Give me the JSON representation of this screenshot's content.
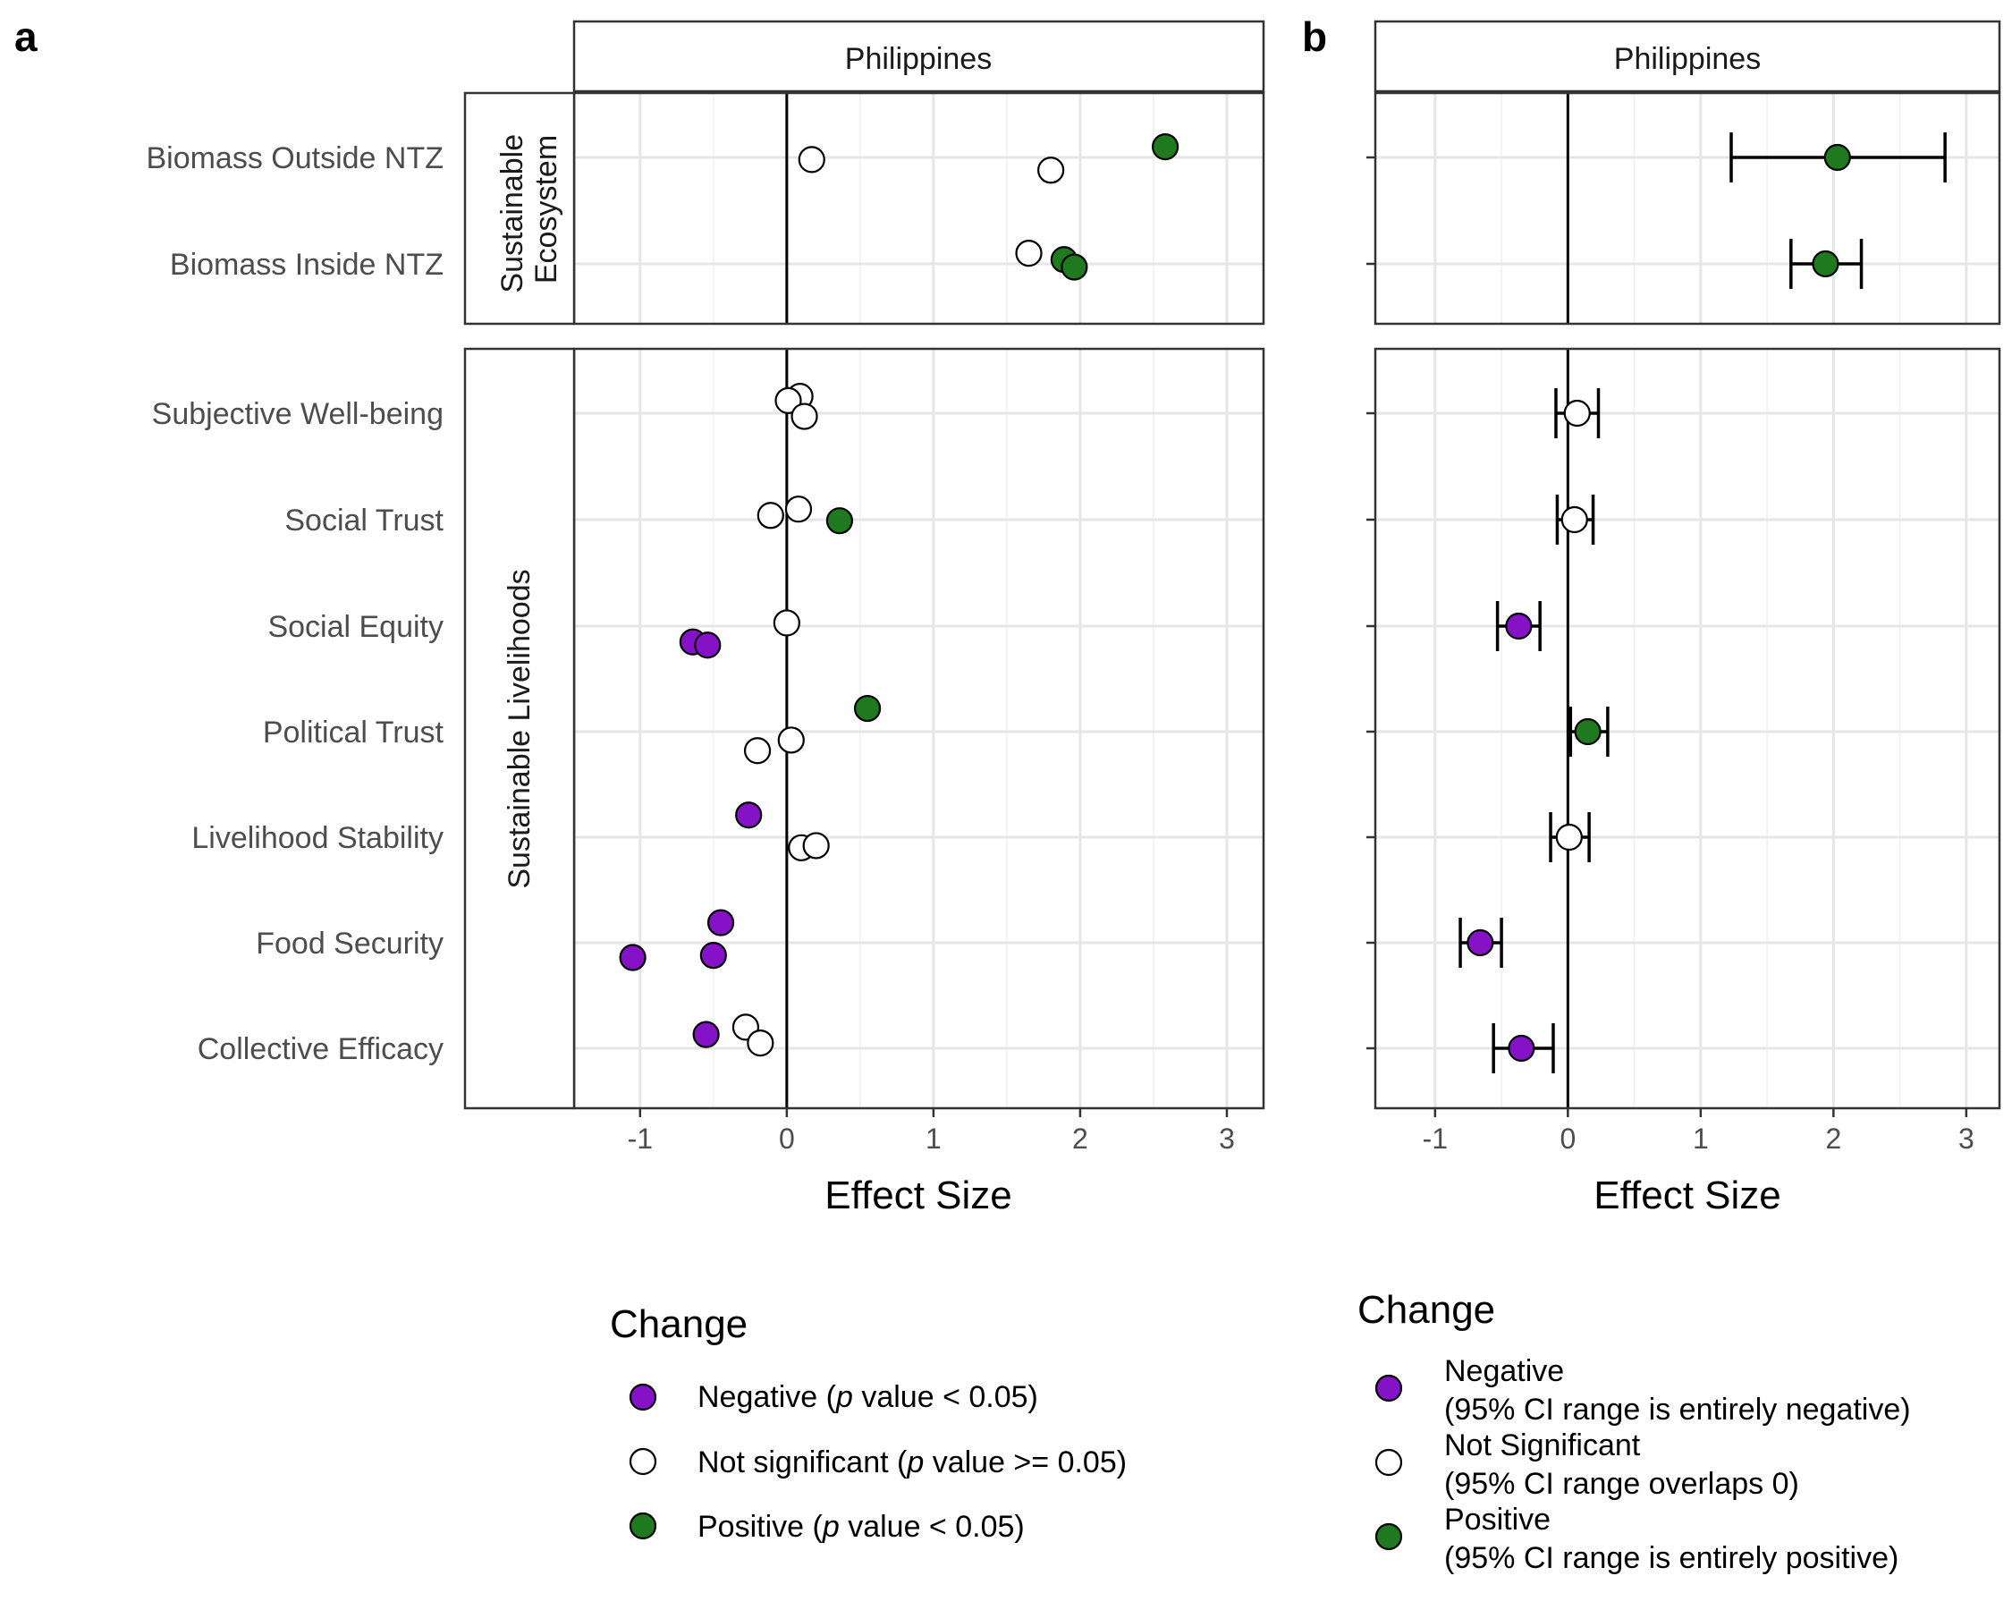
{
  "panels": {
    "a_label": "a",
    "b_label": "b",
    "strip_title": "Philippines",
    "x_title": "Effect Size",
    "facet_top": [
      "Sustainable",
      "Ecosystem"
    ],
    "facet_bottom": "Sustainable Livelihoods"
  },
  "colors": {
    "Negative": "#8612C7",
    "Not significant": "#FFFFFF",
    "Positive": "#1F7A1F"
  },
  "legend_a": {
    "title": "Change",
    "items": [
      {
        "key": "Negative",
        "pre": "Negative (",
        "italic": "p",
        "post": " value < 0.05)"
      },
      {
        "key": "Not significant",
        "pre": "Not significant (",
        "italic": "p",
        "post": " value >= 0.05)"
      },
      {
        "key": "Positive",
        "pre": "Positive (",
        "italic": "p",
        "post": " value < 0.05)"
      }
    ]
  },
  "legend_b": {
    "title": "Change",
    "items": [
      {
        "key": "Negative",
        "line1": "Negative",
        "line2": "(95% CI range is entirely negative)"
      },
      {
        "key": "Not significant",
        "line1": "Not Significant",
        "line2": "(95% CI range overlaps 0)"
      },
      {
        "key": "Positive",
        "line1": "Positive",
        "line2": "(95% CI range is entirely positive)"
      }
    ]
  },
  "chart_data": [
    {
      "type": "scatter",
      "panel": "a",
      "title": "Philippines",
      "xlabel": "Effect Size",
      "xlim": [
        -1.45,
        3.25
      ],
      "xticks": [
        -1,
        0,
        1,
        2,
        3
      ],
      "grid": true,
      "legend_placement": "bottom",
      "facets": [
        {
          "name": "Sustainable Ecosystem",
          "categories": [
            "Biomass Outside NTZ",
            "Biomass Inside NTZ"
          ],
          "points": [
            {
              "category": "Biomass Outside NTZ",
              "x": 2.58,
              "offset": 0.1,
              "change": "Positive"
            },
            {
              "category": "Biomass Outside NTZ",
              "x": 0.17,
              "offset": -0.02,
              "change": "Not significant"
            },
            {
              "category": "Biomass Outside NTZ",
              "x": 1.8,
              "offset": -0.12,
              "change": "Not significant"
            },
            {
              "category": "Biomass Inside NTZ",
              "x": 1.65,
              "offset": 0.1,
              "change": "Not significant"
            },
            {
              "category": "Biomass Inside NTZ",
              "x": 1.89,
              "offset": 0.04,
              "change": "Positive"
            },
            {
              "category": "Biomass Inside NTZ",
              "x": 1.96,
              "offset": -0.03,
              "change": "Positive"
            }
          ]
        },
        {
          "name": "Sustainable Livelihoods",
          "categories": [
            "Subjective Well-being",
            "Social Trust",
            "Social Equity",
            "Political Trust",
            "Livelihood Stability",
            "Food Security",
            "Collective Efficacy"
          ],
          "points": [
            {
              "category": "Subjective Well-being",
              "x": 0.09,
              "offset": 0.16,
              "change": "Not significant"
            },
            {
              "category": "Subjective Well-being",
              "x": 0.01,
              "offset": 0.12,
              "change": "Not significant"
            },
            {
              "category": "Subjective Well-being",
              "x": 0.12,
              "offset": -0.03,
              "change": "Not significant"
            },
            {
              "category": "Social Trust",
              "x": 0.08,
              "offset": 0.1,
              "change": "Not significant"
            },
            {
              "category": "Social Trust",
              "x": -0.11,
              "offset": 0.04,
              "change": "Not significant"
            },
            {
              "category": "Social Trust",
              "x": 0.36,
              "offset": -0.01,
              "change": "Positive"
            },
            {
              "category": "Social Equity",
              "x": 0.0,
              "offset": 0.03,
              "change": "Not significant"
            },
            {
              "category": "Social Equity",
              "x": -0.64,
              "offset": -0.15,
              "change": "Negative"
            },
            {
              "category": "Social Equity",
              "x": -0.54,
              "offset": -0.18,
              "change": "Negative"
            },
            {
              "category": "Political Trust",
              "x": 0.55,
              "offset": 0.22,
              "change": "Positive"
            },
            {
              "category": "Political Trust",
              "x": 0.03,
              "offset": -0.08,
              "change": "Not significant"
            },
            {
              "category": "Political Trust",
              "x": -0.2,
              "offset": -0.18,
              "change": "Not significant"
            },
            {
              "category": "Livelihood Stability",
              "x": -0.26,
              "offset": 0.21,
              "change": "Negative"
            },
            {
              "category": "Livelihood Stability",
              "x": 0.1,
              "offset": -0.1,
              "change": "Not significant"
            },
            {
              "category": "Livelihood Stability",
              "x": 0.2,
              "offset": -0.08,
              "change": "Not significant"
            },
            {
              "category": "Food Security",
              "x": -0.45,
              "offset": 0.19,
              "change": "Negative"
            },
            {
              "category": "Food Security",
              "x": -1.05,
              "offset": -0.14,
              "change": "Negative"
            },
            {
              "category": "Food Security",
              "x": -0.5,
              "offset": -0.12,
              "change": "Negative"
            },
            {
              "category": "Collective Efficacy",
              "x": -0.28,
              "offset": 0.2,
              "change": "Not significant"
            },
            {
              "category": "Collective Efficacy",
              "x": -0.55,
              "offset": 0.13,
              "change": "Negative"
            },
            {
              "category": "Collective Efficacy",
              "x": -0.18,
              "offset": 0.05,
              "change": "Not significant"
            }
          ]
        }
      ]
    },
    {
      "type": "scatter",
      "panel": "b",
      "title": "Philippines",
      "xlabel": "Effect Size",
      "xlim": [
        -1.45,
        3.25
      ],
      "xticks": [
        -1,
        0,
        1,
        2,
        3
      ],
      "grid": true,
      "legend_placement": "bottom",
      "error_bars": "95% CI",
      "facets": [
        {
          "name": "Sustainable Ecosystem",
          "categories": [
            "Biomass Outside NTZ",
            "Biomass Inside NTZ"
          ],
          "points": [
            {
              "category": "Biomass Outside NTZ",
              "x": 2.03,
              "lo": 1.23,
              "hi": 2.84,
              "change": "Positive"
            },
            {
              "category": "Biomass Inside NTZ",
              "x": 1.94,
              "lo": 1.68,
              "hi": 2.21,
              "change": "Positive"
            }
          ]
        },
        {
          "name": "Sustainable Livelihoods",
          "categories": [
            "Subjective Well-being",
            "Social Trust",
            "Social Equity",
            "Political Trust",
            "Livelihood Stability",
            "Food Security",
            "Collective Efficacy"
          ],
          "points": [
            {
              "category": "Subjective Well-being",
              "x": 0.07,
              "lo": -0.09,
              "hi": 0.23,
              "change": "Not significant"
            },
            {
              "category": "Social Trust",
              "x": 0.05,
              "lo": -0.08,
              "hi": 0.19,
              "change": "Not significant"
            },
            {
              "category": "Social Equity",
              "x": -0.37,
              "lo": -0.53,
              "hi": -0.21,
              "change": "Negative"
            },
            {
              "category": "Political Trust",
              "x": 0.15,
              "lo": 0.02,
              "hi": 0.3,
              "change": "Positive"
            },
            {
              "category": "Livelihood Stability",
              "x": 0.01,
              "lo": -0.13,
              "hi": 0.16,
              "change": "Not significant"
            },
            {
              "category": "Food Security",
              "x": -0.66,
              "lo": -0.81,
              "hi": -0.5,
              "change": "Negative"
            },
            {
              "category": "Collective Efficacy",
              "x": -0.35,
              "lo": -0.56,
              "hi": -0.11,
              "change": "Negative"
            }
          ]
        }
      ]
    }
  ]
}
